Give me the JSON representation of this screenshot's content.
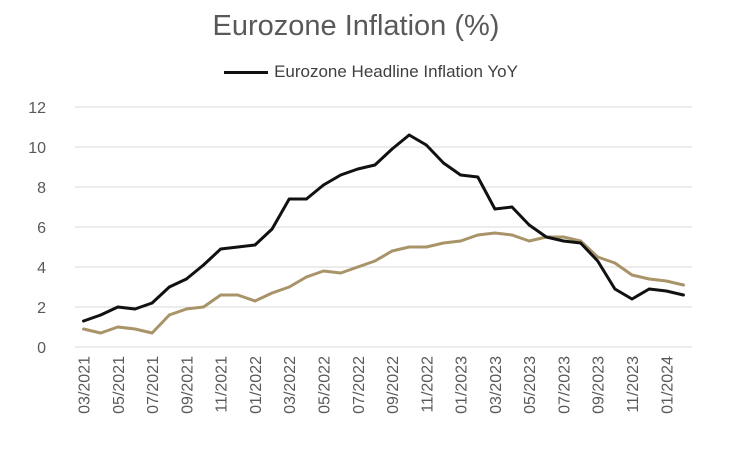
{
  "chart_data": {
    "type": "line",
    "title": "Eurozone Inflation (%)",
    "xlabel": "",
    "ylabel": "",
    "ylim": [
      0,
      12
    ],
    "yticks": [
      0,
      2,
      4,
      6,
      8,
      10,
      12
    ],
    "grid": "horizontal",
    "legend_position": "top",
    "x": [
      "03/2021",
      "04/2021",
      "05/2021",
      "06/2021",
      "07/2021",
      "08/2021",
      "09/2021",
      "10/2021",
      "11/2021",
      "12/2021",
      "01/2022",
      "02/2022",
      "03/2022",
      "04/2022",
      "05/2022",
      "06/2022",
      "07/2022",
      "08/2022",
      "09/2022",
      "10/2022",
      "11/2022",
      "12/2022",
      "01/2023",
      "02/2023",
      "03/2023",
      "04/2023",
      "05/2023",
      "06/2023",
      "07/2023",
      "08/2023",
      "09/2023",
      "10/2023",
      "11/2023",
      "12/2023",
      "01/2024",
      "02/2024"
    ],
    "x_tick_labels": [
      "03/2021",
      "05/2021",
      "07/2021",
      "09/2021",
      "11/2021",
      "01/2022",
      "03/2022",
      "05/2022",
      "07/2022",
      "09/2022",
      "11/2022",
      "01/2023",
      "03/2023",
      "05/2023",
      "07/2023",
      "09/2023",
      "11/2023",
      "01/2024"
    ],
    "series": [
      {
        "name": "Eurozone Headline Inflation YoY",
        "color": "#111111",
        "values": [
          1.3,
          1.6,
          2.0,
          1.9,
          2.2,
          3.0,
          3.4,
          4.1,
          4.9,
          5.0,
          5.1,
          5.9,
          7.4,
          7.4,
          8.1,
          8.6,
          8.9,
          9.1,
          9.9,
          10.6,
          10.1,
          9.2,
          8.6,
          8.5,
          6.9,
          7.0,
          6.1,
          5.5,
          5.3,
          5.2,
          4.3,
          2.9,
          2.4,
          2.9,
          2.8,
          2.6
        ]
      },
      {
        "color": "#a89468",
        "values": [
          0.9,
          0.7,
          1.0,
          0.9,
          0.7,
          1.6,
          1.9,
          2.0,
          2.6,
          2.6,
          2.3,
          2.7,
          3.0,
          3.5,
          3.8,
          3.7,
          4.0,
          4.3,
          4.8,
          5.0,
          5.0,
          5.2,
          5.3,
          5.6,
          5.7,
          5.6,
          5.3,
          5.5,
          5.5,
          5.3,
          4.5,
          4.2,
          3.6,
          3.4,
          3.3,
          3.1
        ]
      }
    ]
  }
}
